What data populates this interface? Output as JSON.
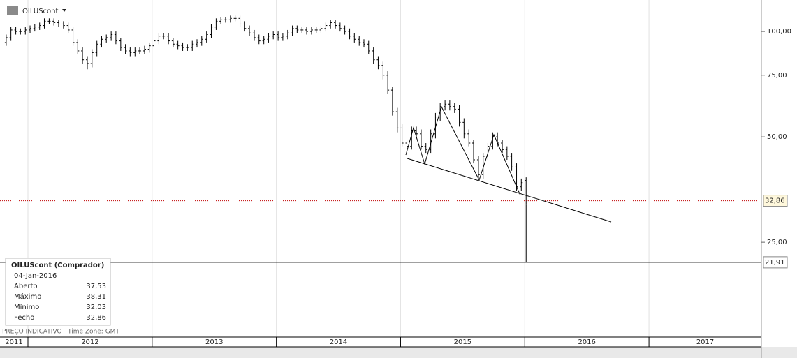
{
  "chart_data": {
    "type": "ohlc",
    "title": "OILUScont",
    "color": "#000000",
    "x": [
      2011.825,
      2011.863,
      2011.902,
      2011.94,
      2011.979,
      2012.017,
      2012.055,
      2012.094,
      2012.132,
      2012.171,
      2012.209,
      2012.247,
      2012.286,
      2012.324,
      2012.363,
      2012.401,
      2012.439,
      2012.478,
      2012.516,
      2012.555,
      2012.593,
      2012.631,
      2012.67,
      2012.708,
      2012.747,
      2012.785,
      2012.823,
      2012.862,
      2012.9,
      2012.939,
      2012.977,
      2013.015,
      2013.054,
      2013.092,
      2013.131,
      2013.169,
      2013.207,
      2013.246,
      2013.284,
      2013.323,
      2013.361,
      2013.399,
      2013.438,
      2013.476,
      2013.515,
      2013.553,
      2013.591,
      2013.63,
      2013.668,
      2013.707,
      2013.745,
      2013.783,
      2013.822,
      2013.86,
      2013.899,
      2013.937,
      2013.975,
      2014.014,
      2014.052,
      2014.091,
      2014.129,
      2014.167,
      2014.206,
      2014.244,
      2014.283,
      2014.321,
      2014.359,
      2014.398,
      2014.436,
      2014.475,
      2014.513,
      2014.551,
      2014.59,
      2014.628,
      2014.667,
      2014.705,
      2014.743,
      2014.782,
      2014.82,
      2014.859,
      2014.897,
      2014.935,
      2014.974,
      2015.012,
      2015.051,
      2015.089,
      2015.127,
      2015.166,
      2015.204,
      2015.243,
      2015.281,
      2015.319,
      2015.358,
      2015.396,
      2015.435,
      2015.473,
      2015.511,
      2015.55,
      2015.588,
      2015.627,
      2015.665,
      2015.703,
      2015.742,
      2015.78,
      2015.819,
      2015.857,
      2015.895,
      2015.934,
      2015.972,
      2016.011
    ],
    "open": [
      93,
      96,
      101,
      100,
      100,
      101,
      102,
      103,
      104,
      107,
      107,
      106,
      105,
      104,
      101,
      93,
      88,
      83,
      81,
      87,
      92,
      95,
      96,
      98,
      94,
      90,
      88,
      87,
      88,
      88,
      89,
      91,
      94,
      97,
      97,
      94,
      92,
      91,
      90,
      90,
      92,
      93,
      95,
      98,
      103,
      107,
      108,
      108,
      109,
      109,
      105,
      102,
      99,
      96,
      94,
      95,
      97,
      98,
      96,
      97,
      99,
      102,
      101,
      101,
      100,
      101,
      101,
      102,
      104,
      106,
      104,
      102,
      100,
      97,
      95,
      93,
      92,
      88,
      83,
      80,
      75,
      68,
      59,
      53,
      48,
      47,
      52,
      51,
      47,
      46,
      51,
      57,
      61,
      62,
      61,
      60,
      55,
      51,
      48,
      43,
      39,
      44,
      47,
      50,
      48,
      46,
      44,
      41,
      36,
      37.53
    ],
    "high": [
      98,
      103,
      103,
      102,
      103,
      104,
      105,
      106,
      109,
      109,
      109,
      108,
      107,
      106,
      103,
      95,
      90,
      85,
      89,
      94,
      97,
      98,
      100,
      100,
      96,
      92,
      90,
      90,
      90,
      91,
      93,
      96,
      99,
      99,
      99,
      96,
      94,
      93,
      92,
      94,
      95,
      97,
      100,
      105,
      109,
      110,
      110,
      111,
      111,
      111,
      107,
      104,
      101,
      98,
      97,
      99,
      100,
      100,
      99,
      101,
      104,
      104,
      103,
      103,
      103,
      103,
      104,
      106,
      108,
      108,
      106,
      104,
      102,
      99,
      97,
      95,
      94,
      90,
      85,
      82,
      77,
      69.5,
      60.5,
      54.5,
      49,
      53.5,
      53.5,
      52.5,
      48,
      52.5,
      58.5,
      62.5,
      63.5,
      63.5,
      62.5,
      61.5,
      56.5,
      52.5,
      49,
      44,
      45,
      48,
      51.5,
      51.5,
      49,
      47,
      45,
      42,
      38,
      38.31
    ],
    "low": [
      91,
      94,
      98,
      98,
      98,
      99,
      100,
      101,
      102,
      105,
      104,
      103,
      102,
      99,
      91,
      86,
      81,
      78,
      79,
      85,
      90,
      93,
      94,
      92,
      88,
      86,
      85,
      85,
      86,
      86,
      87,
      89,
      92,
      95,
      92,
      90,
      89,
      88,
      88,
      88,
      90,
      91,
      93,
      96,
      101,
      105,
      106,
      106,
      107,
      103,
      100,
      97,
      94,
      92,
      92,
      93,
      95,
      94,
      94,
      95,
      97,
      99,
      99,
      98,
      98,
      99,
      99,
      100,
      102,
      102,
      100,
      98,
      95,
      93,
      91,
      90,
      86,
      81,
      78,
      73,
      66.5,
      57.5,
      51.5,
      47,
      46,
      46,
      49.5,
      46,
      45,
      45,
      49.5,
      55.5,
      59.5,
      59.5,
      58.5,
      53.5,
      49.5,
      47,
      42,
      38,
      38,
      43,
      46,
      47,
      45,
      43,
      40,
      35,
      35,
      32.03
    ],
    "close": [
      96,
      101,
      100,
      100,
      101,
      102,
      103,
      104,
      107,
      107,
      106,
      105,
      104,
      101,
      93,
      88,
      83,
      81,
      87,
      92,
      95,
      96,
      98,
      94,
      90,
      88,
      87,
      88,
      88,
      89,
      91,
      94,
      97,
      97,
      94,
      92,
      91,
      90,
      90,
      92,
      93,
      95,
      98,
      103,
      107,
      108,
      108,
      109,
      109,
      105,
      102,
      99,
      96,
      94,
      95,
      97,
      98,
      96,
      97,
      99,
      102,
      101,
      101,
      100,
      101,
      101,
      102,
      104,
      106,
      104,
      102,
      100,
      97,
      95,
      93,
      92,
      88,
      83,
      80,
      75,
      68,
      59,
      53,
      48,
      47,
      52,
      51,
      47,
      46,
      51,
      57,
      61,
      62,
      61,
      60,
      55,
      51,
      48,
      43,
      39,
      44,
      47,
      50,
      48,
      46,
      44,
      41,
      36,
      37,
      32.86
    ],
    "xlim": [
      2011.775,
      2017.905
    ],
    "xticks": [
      2011,
      2012,
      2013,
      2014,
      2015,
      2016,
      2017
    ],
    "ylim": [
      13.4,
      123
    ],
    "log_y": true,
    "yticks": [
      {
        "value": 25,
        "label": "25,00"
      },
      {
        "value": 50,
        "label": "50,00"
      },
      {
        "value": 75,
        "label": "75,00"
      },
      {
        "value": 100,
        "label": "100,00"
      }
    ],
    "last_price": {
      "value": 32.86,
      "label": "32,86",
      "color": "#c00000"
    },
    "crosshair": {
      "value": 21.91,
      "label": "21,91"
    },
    "info_box": {
      "title": "OILUScont (Comprador)",
      "date": "04-Jan-2016",
      "rows": [
        {
          "name": "Aberto",
          "value": "37,53"
        },
        {
          "name": "Máximo",
          "value": "38,31"
        },
        {
          "name": "Mínimo",
          "value": "32,03"
        },
        {
          "name": "Fecho",
          "value": "32,86"
        }
      ]
    },
    "footer_note": "PREÇO INDICATIVO",
    "timezone": "Time Zone: GMT"
  }
}
